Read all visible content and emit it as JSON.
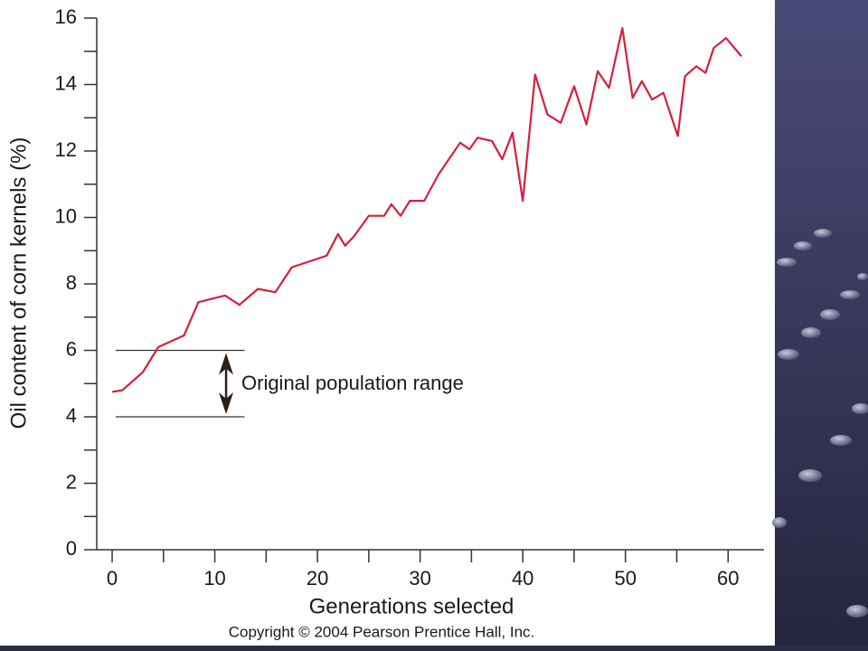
{
  "chart_data": {
    "type": "line",
    "xlabel": "Generations selected",
    "ylabel": "Oil content of corn kernels (%)",
    "footer": "Copyright © 2004 Pearson Prentice Hall, Inc.",
    "annotation": {
      "text": "Original population range",
      "range": [
        4,
        6
      ]
    },
    "xlim": [
      -1.5,
      63.5
    ],
    "ylim": [
      0,
      16
    ],
    "xticks": [
      0,
      10,
      20,
      30,
      40,
      50,
      60
    ],
    "xminorticks": [
      5,
      15,
      25,
      35,
      45,
      55
    ],
    "yticks": [
      0,
      2,
      4,
      6,
      8,
      10,
      12,
      14,
      16
    ],
    "yminorticks": [
      1,
      3,
      5,
      7,
      9,
      11,
      13,
      15
    ],
    "series": [
      {
        "color": "#d4203c",
        "x": [
          0,
          1,
          3,
          4.5,
          7,
          8.4,
          11,
          12.4,
          14.2,
          15.9,
          17.5,
          20.9,
          22,
          22.7,
          23.6,
          25,
          26.5,
          27.2,
          28.1,
          29,
          30.4,
          31.8,
          33.9,
          34.8,
          35.6,
          37,
          38,
          39,
          40,
          41.2,
          42.4,
          43.7,
          45,
          46.2,
          47.3,
          48.4,
          49.7,
          50.7,
          51.6,
          52.6,
          53.7,
          55.1,
          55.8,
          56.9,
          57.8,
          58.6,
          59.8,
          61.3
        ],
        "values": [
          4.75,
          4.8,
          5.35,
          6.1,
          6.45,
          7.45,
          7.65,
          7.37,
          7.85,
          7.75,
          8.5,
          8.85,
          9.5,
          9.15,
          9.45,
          10.05,
          10.05,
          10.4,
          10.05,
          10.5,
          10.5,
          11.3,
          12.25,
          12.05,
          12.4,
          12.3,
          11.75,
          12.55,
          10.5,
          14.3,
          13.1,
          12.85,
          13.95,
          12.8,
          14.4,
          13.9,
          15.7,
          13.6,
          14.1,
          13.55,
          13.75,
          12.45,
          14.25,
          14.55,
          14.35,
          15.1,
          15.4,
          14.85
        ]
      }
    ]
  }
}
